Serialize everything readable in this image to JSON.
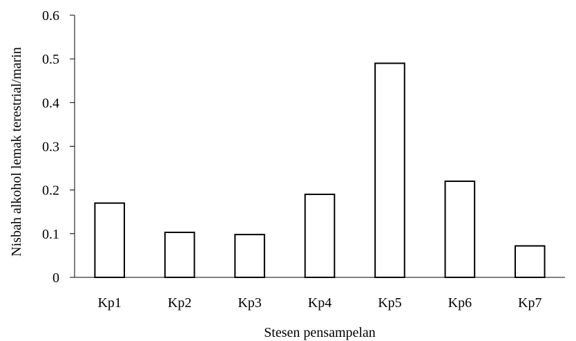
{
  "chart_data": {
    "type": "bar",
    "categories": [
      "Kp1",
      "Kp2",
      "Kp3",
      "Kp4",
      "Kp5",
      "Kp6",
      "Kp7"
    ],
    "values": [
      0.17,
      0.103,
      0.098,
      0.19,
      0.49,
      0.22,
      0.072
    ],
    "xlabel": "Stesen pensampelan",
    "ylabel": "Nisbah alkohol lemak terestrial/marin",
    "ylim": [
      0,
      0.6
    ],
    "yticks": [
      "0",
      "0.1",
      "0.2",
      "0.3",
      "0.4",
      "0.5",
      "0.6"
    ],
    "grid": false,
    "legend": "none",
    "bar_fill_color": "#ffffff",
    "bar_edge_color": "#000000"
  }
}
